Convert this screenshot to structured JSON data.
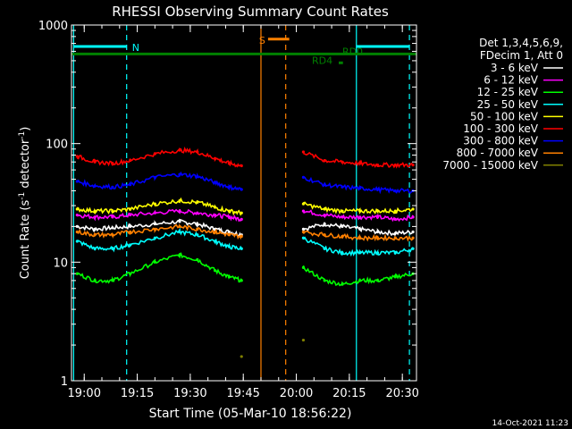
{
  "chart_data": {
    "type": "line",
    "title": "RHESSI Observing Summary Count Rates",
    "xlabel": "Start Time (05-Mar-10 18:56:22)",
    "ylabel_main": "Count Rate (s",
    "ylabel_sup1": "-1",
    "ylabel_mid": " detector",
    "ylabel_sup2": "-1",
    "ylabel_end": ")",
    "yscale": "log",
    "ylim": [
      1,
      1000
    ],
    "xlim_min": [
      56.4,
      154
    ],
    "x_ticks": [
      {
        "t": 60,
        "label": "19:00"
      },
      {
        "t": 75,
        "label": "19:15"
      },
      {
        "t": 90,
        "label": "19:30"
      },
      {
        "t": 105,
        "label": "19:45"
      },
      {
        "t": 120,
        "label": "20:00"
      },
      {
        "t": 135,
        "label": "20:15"
      },
      {
        "t": 150,
        "label": "20:30"
      }
    ],
    "y_ticks": [
      {
        "v": 1,
        "label": "1"
      },
      {
        "v": 10,
        "label": "10"
      },
      {
        "v": 100,
        "label": "100"
      },
      {
        "v": 1000,
        "label": "1000"
      }
    ],
    "legend_header": [
      "Det 1,3,4,5,6,9,",
      "FDecim 1, Att 0"
    ],
    "series": [
      {
        "name": "3 - 6 keV",
        "color": "#ffffff",
        "values": [
          20,
          19,
          19.5,
          20,
          21,
          22,
          21,
          19,
          18,
          17,
          null,
          null,
          19,
          21,
          20,
          19,
          18,
          17.5,
          18
        ]
      },
      {
        "name": "6 - 12 keV",
        "color": "#ff00ff",
        "values": [
          25,
          24,
          24,
          25,
          26,
          27,
          26,
          25,
          24,
          23,
          null,
          null,
          27,
          25,
          24,
          24,
          24,
          23,
          24
        ]
      },
      {
        "name": "12 - 25 keV",
        "color": "#00ff00",
        "values": [
          8,
          7,
          7,
          8,
          10,
          11.5,
          10.5,
          8.5,
          7.5,
          7,
          null,
          null,
          9,
          7,
          6.5,
          7,
          7,
          7.5,
          8
        ]
      },
      {
        "name": "25 - 50 keV",
        "color": "#00ffff",
        "values": [
          15,
          13,
          13,
          14,
          16,
          18,
          17,
          15,
          13.5,
          13,
          null,
          null,
          16,
          13,
          12,
          12,
          12,
          12,
          13
        ]
      },
      {
        "name": "50 - 100 keV",
        "color": "#ffff00",
        "values": [
          28,
          27,
          27,
          28,
          31,
          33,
          32,
          29,
          27,
          26,
          null,
          null,
          31,
          28,
          27,
          27,
          27,
          27,
          28
        ]
      },
      {
        "name": "100 - 300 keV",
        "color": "#ff0000",
        "values": [
          78,
          70,
          68,
          72,
          82,
          88,
          85,
          75,
          68,
          65,
          null,
          null,
          85,
          72,
          70,
          68,
          66,
          66,
          66
        ]
      },
      {
        "name": "300 - 800 keV",
        "color": "#0000ff",
        "values": [
          48,
          44,
          43,
          45,
          52,
          55,
          53,
          47,
          43,
          41,
          null,
          null,
          52,
          45,
          43,
          42,
          41,
          40,
          40
        ]
      },
      {
        "name": "800 - 7000 keV",
        "color": "#ff8000",
        "values": [
          18,
          17,
          17,
          18,
          19,
          20,
          19,
          18,
          17,
          16.5,
          null,
          null,
          18,
          17,
          16.5,
          16,
          16,
          16,
          16
        ]
      },
      {
        "name": "7000 - 15000 keV",
        "color": "#808000",
        "values": [
          null,
          null,
          null,
          null,
          null,
          null,
          null,
          null,
          null,
          1.6,
          null,
          null,
          2.2,
          null,
          null,
          null,
          null,
          null,
          null
        ]
      }
    ],
    "x_values_min": [
      58,
      63,
      68,
      73,
      80,
      87,
      92,
      97,
      101,
      104.5,
      110,
      115,
      122,
      128,
      133,
      138,
      143,
      148,
      153
    ],
    "annotations": {
      "night": {
        "label": "N",
        "from": 57,
        "to": 72,
        "level": 660,
        "color": "#00ffff"
      },
      "night2": {
        "from": 137,
        "to": 152,
        "level": 660,
        "color": "#00ffff"
      },
      "saa": {
        "label": "S",
        "from": 112,
        "to": 118,
        "level": 760,
        "color": "#ff8000"
      },
      "rd0": {
        "label": "RD0",
        "level": 570,
        "color": "#008000"
      },
      "rd4": {
        "label": "RD4",
        "at": 132,
        "level": 480,
        "color": "#008000"
      },
      "vlines_cyan_solid": [
        57,
        137
      ],
      "vlines_cyan_dashed": [
        72,
        152
      ],
      "vlines_orange_solid": [
        110
      ],
      "vlines_orange_dashed": [
        117
      ]
    }
  },
  "footer_date": "14-Oct-2021 11:23"
}
